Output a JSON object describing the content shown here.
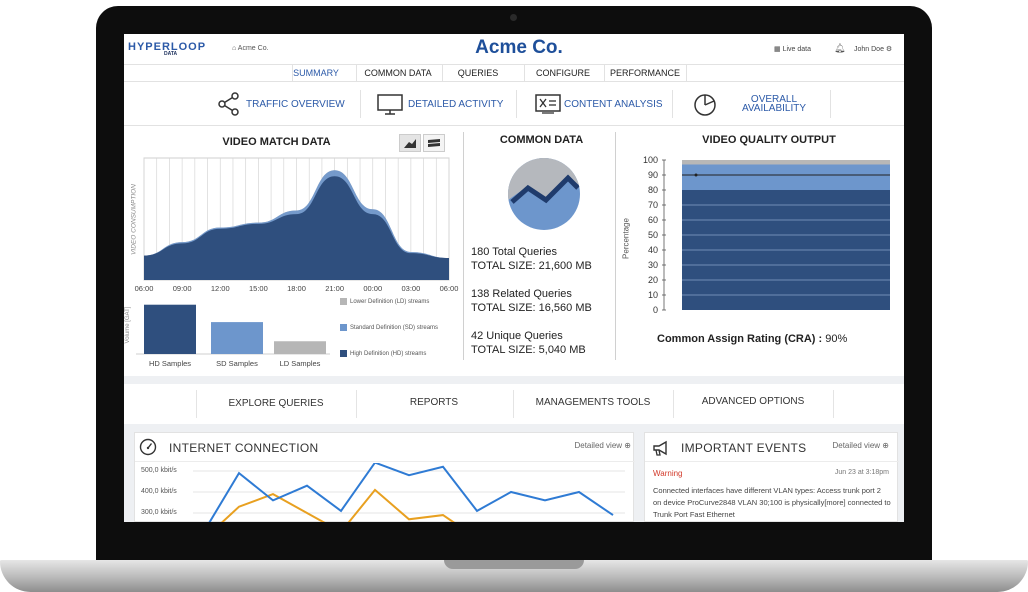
{
  "header": {
    "logo": "HYPERLOOP",
    "logo_sub": "DATA",
    "home": "Acme Co.",
    "brand": "Acme Co.",
    "live": "Live data",
    "user": "John Doe"
  },
  "nav": {
    "items": [
      "SUMMARY",
      "COMMON DATA",
      "QUERIES",
      "CONFIGURE",
      "PERFORMANCE"
    ]
  },
  "subnav": {
    "items": [
      "TRAFFIC OVERVIEW",
      "DETAILED ACTIVITY",
      "CONTENT ANALYSIS",
      "OVERALL AVAILABILITY"
    ]
  },
  "video_match": {
    "title": "VIDEO MATCH DATA",
    "ylabel": "VIDEO CONSUMPTION",
    "bar_ylabel": "Volume [GAT]",
    "legend": [
      "Lower Definition (LD) streams",
      "Standard Definition (SD) streams",
      "High Definition (HD) streams"
    ],
    "colors": {
      "hd": "#2f4f7e",
      "sd": "#6d96cc",
      "ld": "#b6b6b6"
    }
  },
  "common_data": {
    "title": "COMMON DATA",
    "stats": [
      {
        "line1": "180 Total Queries",
        "line2": "TOTAL SIZE: 21,600 MB"
      },
      {
        "line1": "138 Related Queries",
        "line2": "TOTAL SIZE: 16,560 MB"
      },
      {
        "line1": "42 Unique Queries",
        "line2": "TOTAL SIZE: 5,040 MB"
      }
    ]
  },
  "video_quality": {
    "title": "VIDEO QUALITY OUTPUT",
    "ylabel": "Percentage",
    "cra_label": "Common Assign Rating (CRA) :",
    "cra_value": "90%"
  },
  "actions": [
    "EXPLORE QUERIES",
    "REPORTS",
    "MANAGEMENTS TOOLS",
    "ADVANCED OPTIONS"
  ],
  "internet": {
    "title": "INTERNET CONNECTION",
    "detail": "Detailed view"
  },
  "events": {
    "title": "IMPORTANT EVENTS",
    "detail": "Detailed view",
    "level": "Warning",
    "date": "Jun 23 at 3:18pm",
    "message": "Connected interfaces have different VLAN types: Access trunk port 2 on device ProCurve2848 VLAN 30;100 is physically[more] connected to Trunk Port Fast Ethernet"
  },
  "chart_data": [
    {
      "type": "area",
      "x": [
        "06:00",
        "09:00",
        "12:00",
        "15:00",
        "18:00",
        "21:00",
        "00:00",
        "03:00",
        "06:00"
      ],
      "ylabel": "VIDEO CONSUMPTION",
      "ylim": [
        0,
        100
      ],
      "series": [
        {
          "name": "High Definition (HD) streams",
          "values": [
            20,
            30,
            42,
            46,
            54,
            85,
            54,
            22,
            18
          ]
        },
        {
          "name": "Standard Definition (SD) streams",
          "values": [
            20,
            31,
            43,
            47,
            57,
            90,
            58,
            23,
            18
          ]
        },
        {
          "name": "Lower Definition (LD) streams",
          "values": [
            20,
            31,
            43,
            47,
            57,
            90,
            58,
            23,
            18
          ]
        }
      ],
      "legend": "right"
    },
    {
      "type": "bar",
      "categories": [
        "HD Samples",
        "SD Samples",
        "LD Samples"
      ],
      "values": [
        85,
        55,
        22
      ],
      "ylabel": "Volume [GAT]",
      "ylim": [
        0,
        100
      ]
    },
    {
      "type": "pie",
      "values": [
        62,
        38
      ]
    },
    {
      "type": "bar",
      "categories": [
        ""
      ],
      "series": [
        {
          "values": [
            80
          ]
        },
        {
          "values": [
            17
          ]
        },
        {
          "values": [
            3
          ]
        }
      ],
      "ylabel": "Percentage",
      "ylim": [
        0,
        100
      ],
      "yticks": [
        0,
        10,
        20,
        30,
        40,
        50,
        60,
        70,
        80,
        90,
        100
      ],
      "reference_line": 90
    },
    {
      "type": "line",
      "yticks": [
        "500,0 kbit/s",
        "400,0 kbit/s",
        "300,0 kbit/s"
      ],
      "series": [
        {
          "values": [
            120,
            390,
            260,
            330,
            210,
            440,
            380,
            420,
            210,
            300,
            260,
            300,
            190
          ]
        },
        {
          "values": [
            80,
            230,
            290,
            200,
            110,
            310,
            170,
            190,
            80,
            130,
            110,
            140,
            90
          ]
        }
      ]
    }
  ]
}
